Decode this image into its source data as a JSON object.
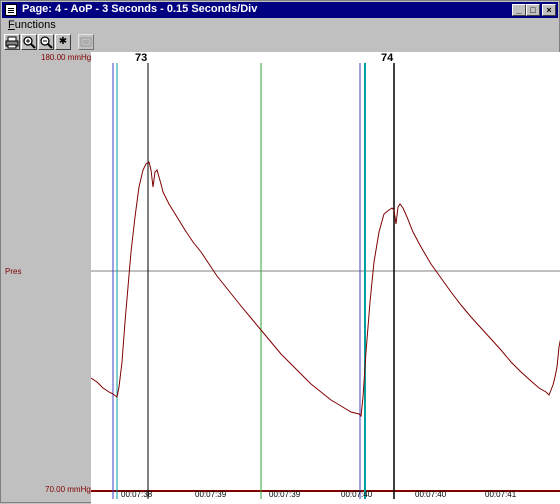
{
  "window": {
    "title": "Page: 4 - AoP - 3 Seconds - 0.15 Seconds/Div",
    "minimize_glyph": "_",
    "maximize_glyph": "□",
    "close_glyph": "×"
  },
  "menu": {
    "functions": "Functions"
  },
  "toolbar": {
    "icons": [
      "printer-icon",
      "zoom-in-icon",
      "zoom-out-icon",
      "asterisk-icon",
      "disabled-tool-icon"
    ],
    "asterisk_glyph": "✱"
  },
  "channel": {
    "name": "Pres",
    "y_max_label": "180.00 mmHg",
    "y_min_label": "70.00 mmHg",
    "trace_color": "#800000"
  },
  "beats": [
    {
      "label": "73"
    },
    {
      "label": "74"
    }
  ],
  "time_axis": {
    "labels": [
      "00:07:38",
      "00:07:39",
      "00:07:39",
      "00:07:40",
      "00:07:40",
      "00:07:41"
    ]
  },
  "colors": {
    "title_bar": "#000080",
    "beat_line": "#000000",
    "blue_marker": "#4040c0",
    "teal_marker": "#00a0a0",
    "green_marker": "#30a030",
    "midline": "#808080"
  }
}
